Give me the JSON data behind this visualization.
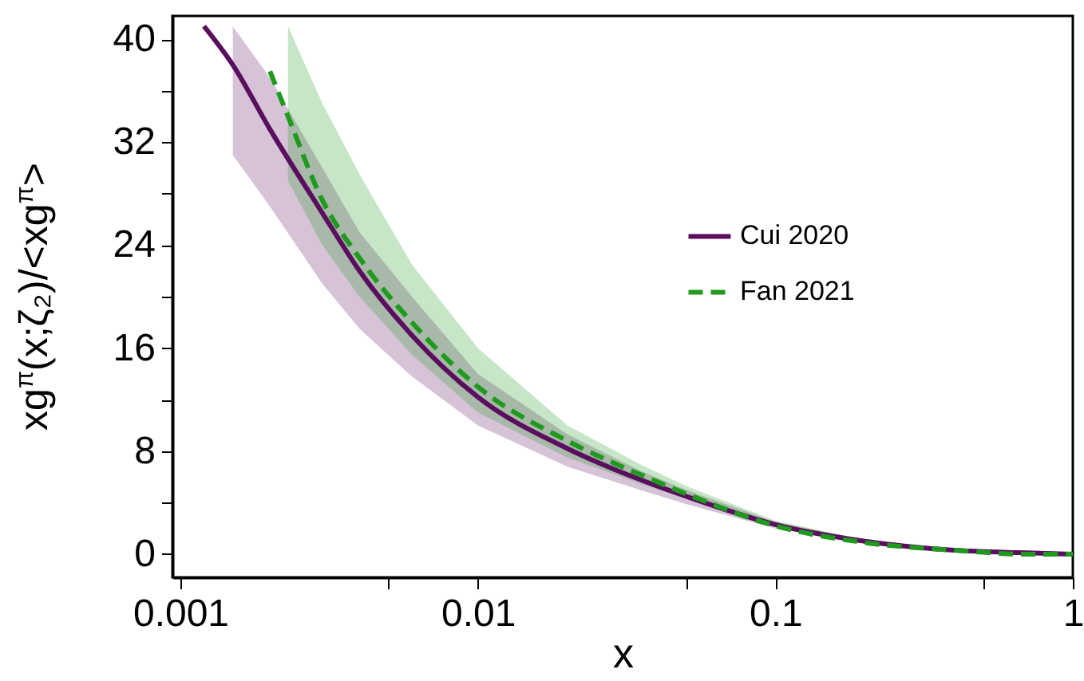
{
  "chart_data": {
    "type": "line",
    "xlabel": "x",
    "ylabel": "xg$^{π}$(x;ζ₂)/<xg$^{π}$>",
    "log": "x",
    "xlim": [
      0.00094,
      1
    ],
    "ylim": [
      -1.8,
      41.8
    ],
    "xticks": [
      0.001,
      {
        "value": 0.005,
        "label": null
      },
      0.01,
      {
        "value": 0.05,
        "label": null
      },
      0.1,
      {
        "value": 0.5,
        "label": null
      },
      1
    ],
    "yticks": [
      0,
      {
        "value": 4,
        "label": null
      },
      8,
      {
        "value": 12,
        "label": null
      },
      16,
      {
        "value": 20,
        "label": null
      },
      24,
      {
        "value": 28,
        "label": null
      },
      32,
      {
        "value": 36,
        "label": null
      },
      40
    ],
    "legend": "right",
    "grid": false,
    "series": [
      {
        "name": "Cui 2020",
        "color": "#5a0f5e",
        "line_style": "solid",
        "x": [
          0.0012,
          0.0015,
          0.002,
          0.003,
          0.004,
          0.006,
          0.01,
          0.02,
          0.035,
          0.05,
          0.1,
          0.2,
          0.4,
          0.7,
          1
        ],
        "values": [
          41,
          38,
          33,
          26.5,
          22,
          17,
          12.2,
          8.2,
          5.8,
          4.5,
          2.3,
          1.0,
          0.3,
          0.1,
          0
        ],
        "lower": [
          null,
          31,
          27,
          21,
          17.5,
          13.8,
          10,
          6.8,
          5,
          3.9,
          2.0,
          0.9,
          0.3,
          0,
          0
        ],
        "upper": [
          null,
          41,
          37,
          30,
          25,
          20,
          14,
          9.3,
          6.5,
          5.0,
          2.5,
          1.1,
          0.4,
          0.1,
          0
        ]
      },
      {
        "name": "Fan 2021",
        "color": "#1f9a1f",
        "line_style": "dashed",
        "x": [
          0.002,
          0.0023,
          0.003,
          0.004,
          0.006,
          0.01,
          0.02,
          0.035,
          0.05,
          0.1,
          0.2,
          0.4,
          0.7,
          1
        ],
        "values": [
          37.5,
          34,
          27.5,
          23,
          18,
          13,
          8.8,
          6.2,
          4.7,
          2.2,
          0.9,
          0.3,
          0,
          0
        ],
        "lower": [
          null,
          29,
          24,
          20,
          15.5,
          11,
          7.5,
          5.5,
          4.3,
          2.1,
          0.9,
          0.2,
          0,
          0
        ],
        "upper": [
          null,
          41,
          35,
          29.5,
          22.5,
          16,
          10,
          7,
          5.3,
          2.6,
          1.1,
          0.4,
          0.1,
          0
        ]
      }
    ]
  }
}
